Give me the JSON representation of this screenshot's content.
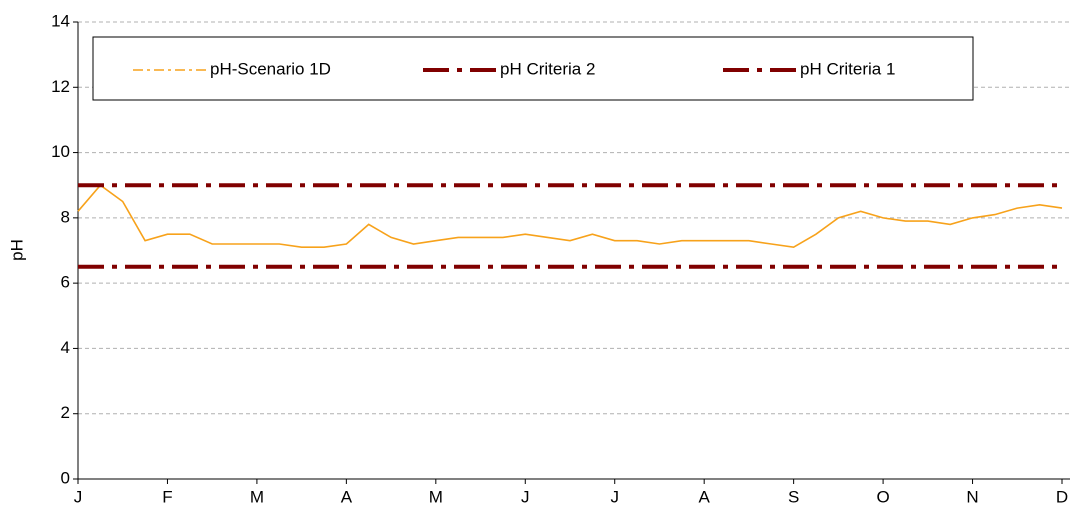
{
  "chart_data": {
    "type": "line",
    "y_label": "pH",
    "categories": [
      "J",
      null,
      null,
      null,
      "F",
      null,
      null,
      null,
      "M",
      null,
      null,
      null,
      "A",
      null,
      null,
      null,
      "M",
      null,
      null,
      null,
      "J",
      null,
      null,
      null,
      "J",
      null,
      null,
      null,
      "A",
      null,
      null,
      null,
      "S",
      null,
      null,
      null,
      "O",
      null,
      null,
      null,
      "N",
      null,
      null,
      null,
      "D"
    ],
    "series": [
      {
        "name": "pH-Scenario 1D",
        "color": "#f7a21b",
        "values": [
          8.2,
          9.0,
          8.5,
          7.3,
          7.5,
          7.5,
          7.2,
          7.2,
          7.2,
          7.2,
          7.1,
          7.1,
          7.2,
          7.8,
          7.4,
          7.2,
          7.3,
          7.4,
          7.4,
          7.4,
          7.5,
          7.4,
          7.3,
          7.5,
          7.3,
          7.3,
          7.2,
          7.3,
          7.3,
          7.3,
          7.3,
          7.2,
          7.1,
          7.5,
          8.0,
          8.2,
          8.0,
          7.9,
          7.9,
          7.8,
          8.0,
          8.1,
          8.3,
          8.4,
          8.3
        ]
      },
      {
        "name": "pH Criteria 2",
        "color": "#800000",
        "values": [
          9,
          9,
          9,
          9,
          9,
          9,
          9,
          9,
          9,
          9,
          9,
          9,
          9,
          9,
          9,
          9,
          9,
          9,
          9,
          9,
          9,
          9,
          9,
          9,
          9,
          9,
          9,
          9,
          9,
          9,
          9,
          9,
          9,
          9,
          9,
          9,
          9,
          9,
          9,
          9,
          9,
          9,
          9,
          9,
          9
        ]
      },
      {
        "name": "pH Criteria 1",
        "color": "#800000",
        "values": [
          6.5,
          6.5,
          6.5,
          6.5,
          6.5,
          6.5,
          6.5,
          6.5,
          6.5,
          6.5,
          6.5,
          6.5,
          6.5,
          6.5,
          6.5,
          6.5,
          6.5,
          6.5,
          6.5,
          6.5,
          6.5,
          6.5,
          6.5,
          6.5,
          6.5,
          6.5,
          6.5,
          6.5,
          6.5,
          6.5,
          6.5,
          6.5,
          6.5,
          6.5,
          6.5,
          6.5,
          6.5,
          6.5,
          6.5,
          6.5,
          6.5,
          6.5,
          6.5,
          6.5,
          6.5
        ]
      }
    ],
    "ylim": [
      0,
      14
    ],
    "yticks": [
      0,
      2,
      4,
      6,
      8,
      10,
      12,
      14
    ],
    "grid": true
  }
}
